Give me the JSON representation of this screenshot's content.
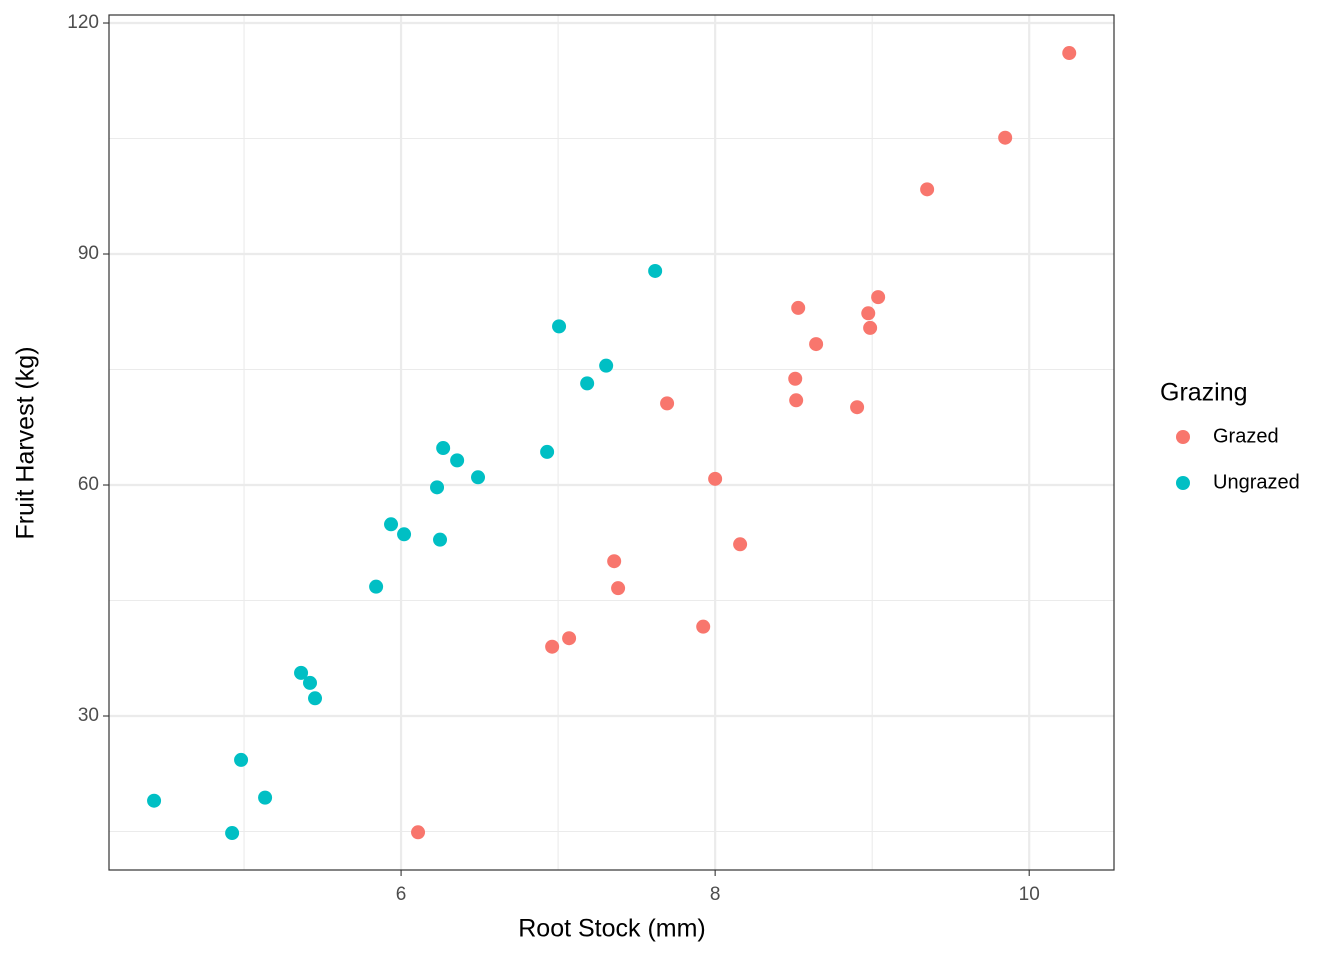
{
  "chart_data": {
    "type": "scatter",
    "x_label": "Root Stock (mm)",
    "y_label": "Fruit Harvest (kg)",
    "legend_title": "Grazing",
    "legend_position": "right",
    "grid": true,
    "xlim": [
      4.14,
      10.54
    ],
    "ylim": [
      10,
      121.04
    ],
    "xticks": [
      6,
      8,
      10
    ],
    "yticks": [
      30,
      60,
      90,
      120
    ],
    "series": [
      {
        "name": "Grazed",
        "color": "#F8766D",
        "x": [
          10.255,
          9.847,
          9.35,
          9.038,
          8.975,
          8.987,
          8.529,
          8.643,
          8.51,
          8.516,
          8.904,
          7.694,
          8.0,
          8.159,
          7.357,
          7.382,
          7.924,
          7.07,
          6.962,
          6.108
        ],
        "values": [
          116.1,
          105.1,
          98.4,
          84.4,
          82.3,
          80.4,
          83.0,
          78.3,
          73.8,
          71.0,
          70.1,
          70.6,
          60.8,
          52.3,
          50.1,
          46.6,
          41.6,
          40.1,
          39.0,
          14.9
        ]
      },
      {
        "name": "Ungrazed",
        "color": "#00BFC4",
        "x": [
          7.618,
          7.006,
          7.306,
          7.185,
          6.93,
          6.268,
          6.357,
          6.49,
          6.229,
          6.248,
          5.936,
          6.019,
          5.841,
          5.363,
          5.42,
          5.452,
          4.981,
          5.134,
          4.427,
          4.924
        ],
        "values": [
          87.8,
          80.6,
          75.5,
          73.2,
          64.3,
          64.8,
          63.2,
          61.0,
          59.7,
          52.9,
          54.9,
          53.6,
          46.8,
          35.6,
          34.3,
          32.3,
          24.3,
          19.4,
          19.0,
          14.8
        ]
      }
    ]
  }
}
